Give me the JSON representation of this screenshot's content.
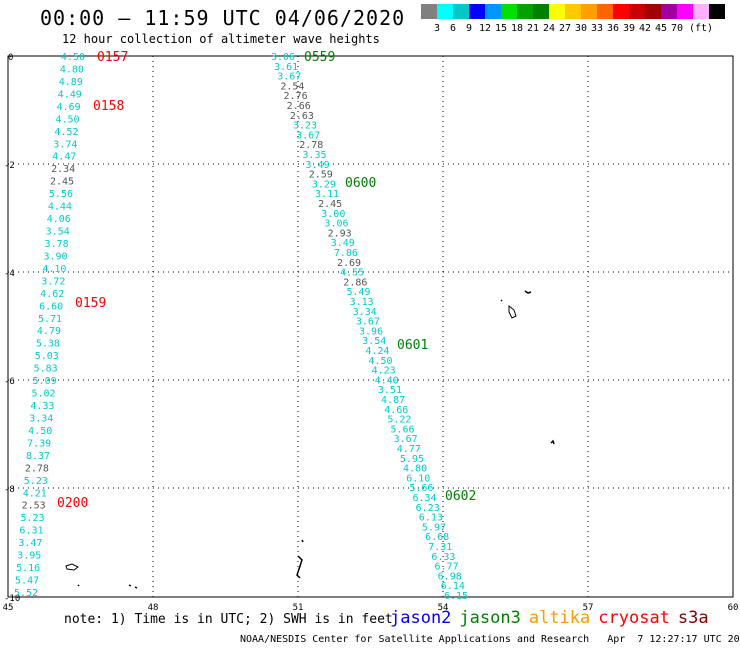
{
  "header": {
    "title": "00:00 – 11:59 UTC 04/06/2020",
    "subtitle": "12 hour collection of altimeter wave heights"
  },
  "color_scale": {
    "colors": [
      "#808080",
      "#00ffff",
      "#00c8c8",
      "#0000ff",
      "#0096ff",
      "#00e000",
      "#00a000",
      "#008000",
      "#ffff00",
      "#ffc800",
      "#ffa000",
      "#ff6400",
      "#ff0000",
      "#c80000",
      "#a00000",
      "#a000a0",
      "#ff00ff",
      "#ffb0ff",
      "#000000"
    ],
    "labels": [
      "3",
      "6",
      "9",
      "12",
      "15",
      "18",
      "21",
      "24",
      "27",
      "30",
      "33",
      "36",
      "39",
      "42",
      "45",
      "70",
      "(ft)"
    ]
  },
  "axes": {
    "x_ticks": [
      "45",
      "48",
      "51",
      "54",
      "57",
      "60"
    ],
    "y_ticks": [
      "0",
      "-2",
      "-4",
      "-6",
      "-8",
      "-10"
    ]
  },
  "tracks": [
    {
      "name": "track-west",
      "values": [
        "4.50",
        "4.80",
        "4.89",
        "4.49",
        "4.69",
        "4.50",
        "4.52",
        "3.74",
        "4.47",
        "2.34",
        "2.45",
        "5.56",
        "4.44",
        "4.06",
        "3.54",
        "3.78",
        "3.90",
        "4.10",
        "3.72",
        "4.62",
        "6.60",
        "5.71",
        "4.79",
        "5.38",
        "5.03",
        "5.83",
        "5.09",
        "5.02",
        "4.33",
        "3.34",
        "4.50",
        "7.39",
        "8.37",
        "2.78",
        "5.23",
        "4.21",
        "2.53",
        "5.23",
        "6.31",
        "3.47",
        "3.95",
        "5.16",
        "5.47",
        "5.52"
      ],
      "times": [
        "0157",
        "0158",
        "0159",
        "0200"
      ]
    },
    {
      "name": "track-east",
      "values": [
        "3.06",
        "3.61",
        "3.67",
        "2.54",
        "2.76",
        "2.66",
        "2.63",
        "3.23",
        "3.67",
        "2.78",
        "3.35",
        "3.49",
        "2.59",
        "3.29",
        "3.11",
        "2.45",
        "3.00",
        "3.06",
        "2.93",
        "3.49",
        "7.86",
        "2.69",
        "4.55",
        "2.86",
        "5.49",
        "3.13",
        "3.34",
        "3.67",
        "3.96",
        "3.54",
        "4.24",
        "4.50",
        "4.23",
        "4.40",
        "3.51",
        "4.87",
        "4.66",
        "5.22",
        "5.66",
        "3.67",
        "4.77",
        "5.95",
        "4.80",
        "6.10",
        "5.66",
        "6.34",
        "6.23",
        "6.13",
        "5.97",
        "6.68",
        "7.31",
        "6.33",
        "6.77",
        "6.98",
        "6.14",
        "6.15"
      ],
      "times": [
        "0559",
        "0600",
        "0601",
        "0602"
      ]
    }
  ],
  "note": "note: 1) Time is in UTC; 2) SWH is in feet",
  "legend": [
    {
      "label": "jason2",
      "color": "#0000ff"
    },
    {
      "label": "jason3",
      "color": "#008000"
    },
    {
      "label": "altika",
      "color": "#ff9900"
    },
    {
      "label": "cryosat",
      "color": "#ff0000"
    },
    {
      "label": "s3a",
      "color": "#800000"
    }
  ],
  "footer": "NOAA/NESDIS Center for Satellite Applications and Research   Apr  7 12:27:17 UTC 2020"
}
